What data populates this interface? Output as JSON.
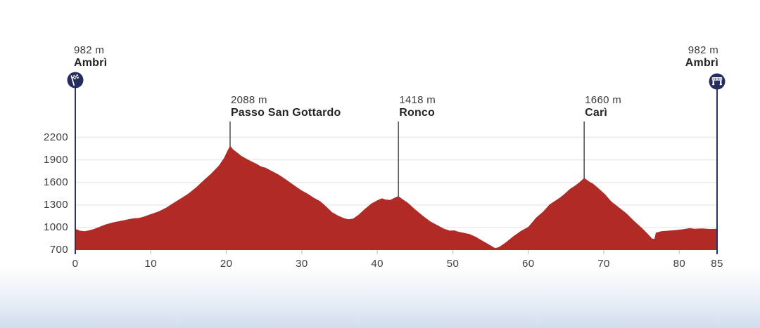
{
  "chart_data": {
    "type": "area",
    "description": "Cycling stage elevation profile",
    "x_unit": "km",
    "y_unit": "m",
    "xlim": [
      0,
      85
    ],
    "ylim": [
      700,
      2350
    ],
    "x_ticks": [
      "0",
      "10",
      "20",
      "30",
      "40",
      "50",
      "60",
      "70",
      "80",
      "85"
    ],
    "x_tick_values": [
      0,
      10,
      20,
      30,
      40,
      50,
      60,
      70,
      80,
      85
    ],
    "y_ticks": [
      "700",
      "1000",
      "1300",
      "1600",
      "1900",
      "2200"
    ],
    "y_tick_values": [
      700,
      1000,
      1300,
      1600,
      1900,
      2200
    ],
    "grid": "horizontal-only",
    "profile_km_m": [
      [
        0,
        982
      ],
      [
        0.6,
        958
      ],
      [
        1.2,
        950
      ],
      [
        1.8,
        962
      ],
      [
        2.5,
        980
      ],
      [
        3.2,
        1008
      ],
      [
        4,
        1040
      ],
      [
        5,
        1068
      ],
      [
        6,
        1088
      ],
      [
        7,
        1108
      ],
      [
        7.8,
        1122
      ],
      [
        8.4,
        1126
      ],
      [
        9,
        1142
      ],
      [
        10,
        1178
      ],
      [
        11,
        1212
      ],
      [
        12,
        1262
      ],
      [
        13,
        1326
      ],
      [
        14,
        1388
      ],
      [
        15,
        1452
      ],
      [
        16,
        1535
      ],
      [
        17,
        1628
      ],
      [
        18,
        1718
      ],
      [
        19,
        1822
      ],
      [
        19.7,
        1925
      ],
      [
        20.1,
        2010
      ],
      [
        20.5,
        2088
      ],
      [
        20.9,
        2040
      ],
      [
        21.4,
        2000
      ],
      [
        22,
        1952
      ],
      [
        23,
        1896
      ],
      [
        24,
        1848
      ],
      [
        24.6,
        1812
      ],
      [
        25.2,
        1795
      ],
      [
        26,
        1752
      ],
      [
        27,
        1700
      ],
      [
        28,
        1632
      ],
      [
        29,
        1560
      ],
      [
        30,
        1492
      ],
      [
        30.8,
        1448
      ],
      [
        31.6,
        1395
      ],
      [
        32.4,
        1352
      ],
      [
        33.2,
        1282
      ],
      [
        34,
        1205
      ],
      [
        34.8,
        1158
      ],
      [
        35.6,
        1122
      ],
      [
        36.2,
        1108
      ],
      [
        36.8,
        1118
      ],
      [
        37.5,
        1168
      ],
      [
        38.3,
        1242
      ],
      [
        39.2,
        1318
      ],
      [
        40,
        1362
      ],
      [
        40.6,
        1388
      ],
      [
        41.1,
        1372
      ],
      [
        41.7,
        1366
      ],
      [
        42.2,
        1392
      ],
      [
        42.8,
        1418
      ],
      [
        43.4,
        1372
      ],
      [
        44,
        1332
      ],
      [
        45,
        1242
      ],
      [
        46,
        1158
      ],
      [
        47,
        1082
      ],
      [
        48,
        1028
      ],
      [
        48.8,
        985
      ],
      [
        49.6,
        958
      ],
      [
        50.2,
        962
      ],
      [
        50.7,
        944
      ],
      [
        51.4,
        930
      ],
      [
        52.2,
        912
      ],
      [
        53,
        878
      ],
      [
        54,
        820
      ],
      [
        55,
        762
      ],
      [
        55.6,
        726
      ],
      [
        56.1,
        738
      ],
      [
        57,
        800
      ],
      [
        58,
        882
      ],
      [
        59,
        952
      ],
      [
        60,
        1008
      ],
      [
        61,
        1128
      ],
      [
        62,
        1215
      ],
      [
        62.8,
        1305
      ],
      [
        63.5,
        1352
      ],
      [
        64.2,
        1398
      ],
      [
        64.8,
        1448
      ],
      [
        65.5,
        1512
      ],
      [
        66.2,
        1558
      ],
      [
        66.8,
        1605
      ],
      [
        67.4,
        1660
      ],
      [
        68,
        1615
      ],
      [
        68.6,
        1582
      ],
      [
        69.4,
        1512
      ],
      [
        70.2,
        1438
      ],
      [
        71,
        1345
      ],
      [
        72,
        1268
      ],
      [
        73,
        1188
      ],
      [
        74,
        1088
      ],
      [
        75,
        998
      ],
      [
        75.8,
        918
      ],
      [
        76.4,
        852
      ],
      [
        76.7,
        848
      ],
      [
        76.9,
        932
      ],
      [
        77.6,
        950
      ],
      [
        78.6,
        958
      ],
      [
        79.6,
        966
      ],
      [
        80.6,
        978
      ],
      [
        81.4,
        992
      ],
      [
        82,
        982
      ],
      [
        83,
        988
      ],
      [
        84,
        980
      ],
      [
        85,
        982
      ]
    ],
    "markers": [
      {
        "kind": "start",
        "km": 0,
        "elevation_label": "982 m",
        "name": "Ambrì",
        "icon": "checkered-flag-icon"
      },
      {
        "kind": "peak",
        "km": 20.5,
        "elevation_label": "2088 m",
        "name": "Passo San Gottardo"
      },
      {
        "kind": "peak",
        "km": 42.8,
        "elevation_label": "1418 m",
        "name": "Ronco"
      },
      {
        "kind": "peak",
        "km": 67.4,
        "elevation_label": "1660 m",
        "name": "Carì"
      },
      {
        "kind": "finish",
        "km": 85,
        "elevation_label": "982 m",
        "name": "Ambrì",
        "icon": "finish-arch-icon"
      }
    ],
    "legend": "none",
    "colors": {
      "area_fill": "#b12b26",
      "axis_line": "#2b325f",
      "badge": "#262d5e",
      "badge_glyph": "#ffffff",
      "peak_line": "#54565a",
      "gridline": "#e9e9e9",
      "tick_mark": "#d2d2d2",
      "text": "#3c3c3b",
      "bottom_fade": "#d2deee"
    }
  }
}
